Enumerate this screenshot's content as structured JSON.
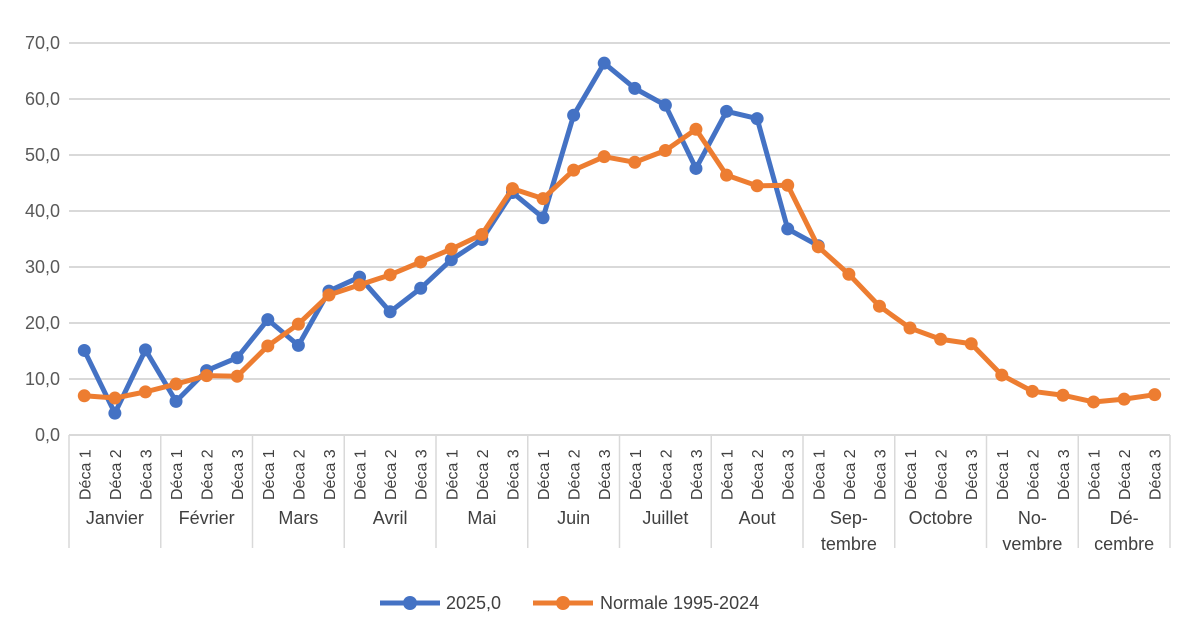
{
  "chart_data": {
    "type": "line",
    "title": "",
    "xlabel": "",
    "ylabel": "",
    "ylim": [
      0,
      70
    ],
    "y_ticks": [
      "0,0",
      "10,0",
      "20,0",
      "30,0",
      "40,0",
      "50,0",
      "60,0",
      "70,0"
    ],
    "grid": true,
    "legend_position": "bottom",
    "decade_labels": [
      "Déca 1",
      "Déca 2",
      "Déca 3"
    ],
    "months": [
      {
        "lines": [
          "Janvier"
        ]
      },
      {
        "lines": [
          "Février"
        ]
      },
      {
        "lines": [
          "Mars"
        ]
      },
      {
        "lines": [
          "Avril"
        ]
      },
      {
        "lines": [
          "Mai"
        ]
      },
      {
        "lines": [
          "Juin"
        ]
      },
      {
        "lines": [
          "Juillet"
        ]
      },
      {
        "lines": [
          "Aout"
        ]
      },
      {
        "lines": [
          "Sep-",
          "tembre"
        ]
      },
      {
        "lines": [
          "Octobre"
        ]
      },
      {
        "lines": [
          "No-",
          "vembre"
        ]
      },
      {
        "lines": [
          "Dé-",
          "cembre"
        ]
      }
    ],
    "series": [
      {
        "name": "2025,0",
        "color": "#4472C4",
        "values": [
          15.1,
          3.9,
          15.2,
          6.0,
          11.5,
          13.8,
          20.6,
          16.0,
          25.7,
          28.2,
          22.0,
          26.2,
          31.3,
          34.9,
          43.3,
          38.8,
          57.1,
          66.4,
          61.9,
          58.9,
          47.6,
          57.8,
          56.5,
          36.8,
          33.8,
          null,
          null,
          null,
          null,
          null,
          null,
          null,
          null,
          null,
          null,
          null
        ]
      },
      {
        "name": "Normale 1995-2024",
        "color": "#ED7D31",
        "values": [
          7.0,
          6.6,
          7.7,
          9.1,
          10.6,
          10.5,
          15.9,
          19.8,
          25.0,
          26.8,
          28.6,
          30.9,
          33.2,
          35.8,
          44.0,
          42.2,
          47.3,
          49.7,
          48.7,
          50.8,
          54.6,
          46.4,
          44.5,
          44.6,
          33.6,
          28.7,
          23.0,
          19.1,
          17.1,
          16.3,
          10.7,
          7.8,
          7.1,
          5.9,
          6.4,
          7.2
        ]
      }
    ]
  }
}
